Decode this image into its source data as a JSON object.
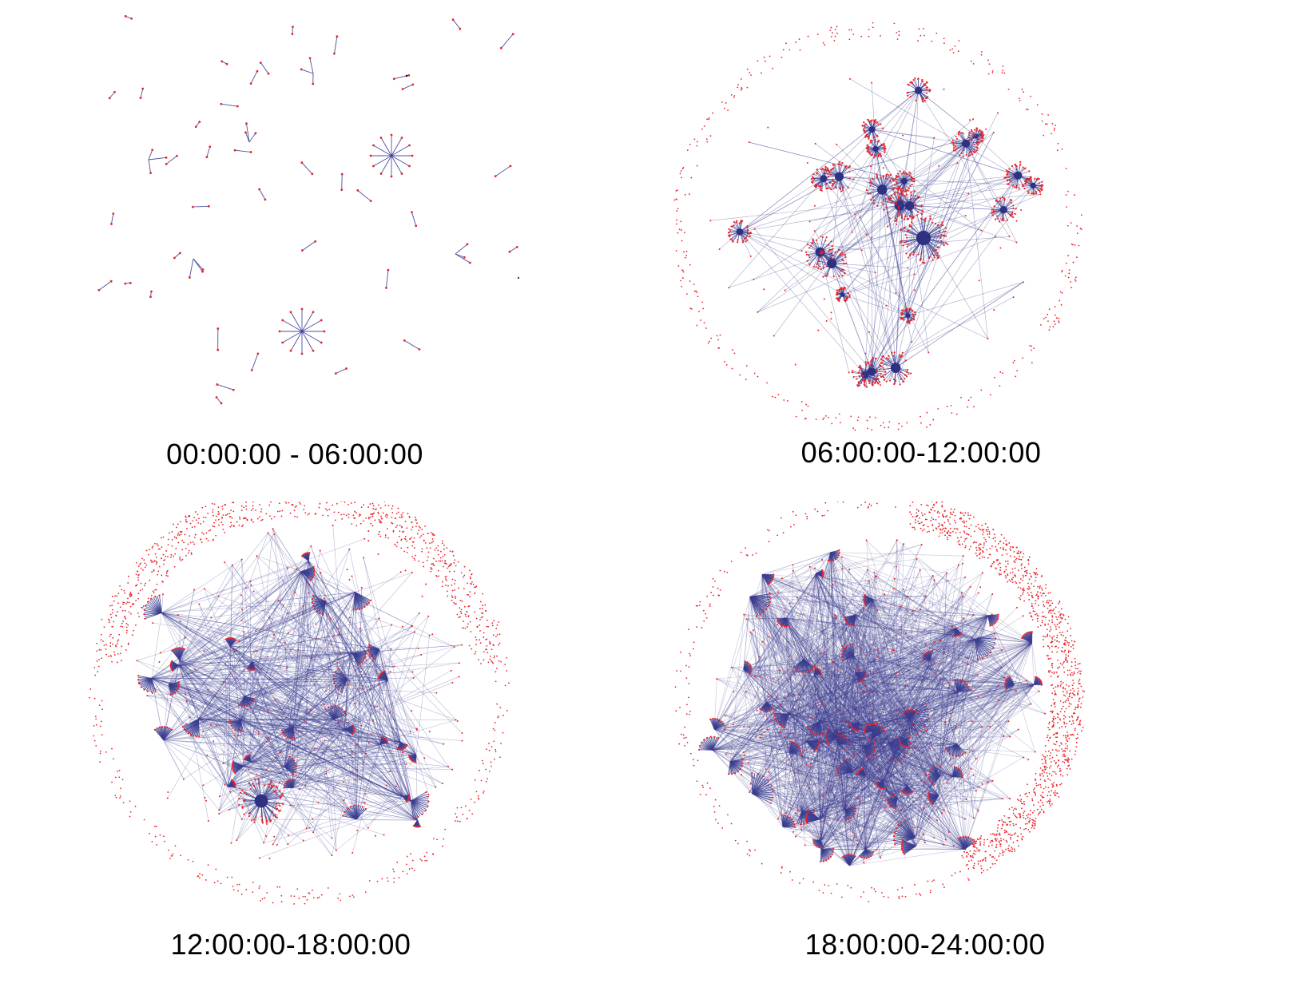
{
  "panels": [
    {
      "caption": "00:00:00 - 06:00:00",
      "density": "sparse"
    },
    {
      "caption": "06:00:00-12:00:00",
      "density": "medium"
    },
    {
      "caption": "12:00:00-18:00:00",
      "density": "dense"
    },
    {
      "caption": "18:00:00-24:00:00",
      "density": "very-dense"
    }
  ],
  "colors": {
    "node": "#e8242b",
    "edge": "#3a3d8f",
    "hub": "#2e3182",
    "background": "#ffffff"
  }
}
